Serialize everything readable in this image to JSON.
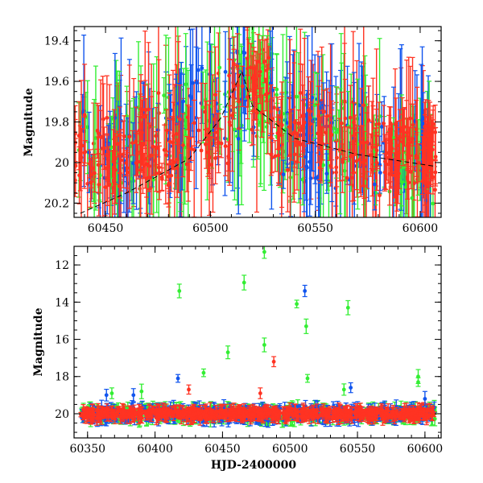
{
  "colors": {
    "green": "#33ee33",
    "blue": "#1155ee",
    "red": "#ff3322",
    "model": "#000000"
  },
  "chart_data": [
    {
      "type": "scatter",
      "panel": "top",
      "title": "",
      "xlabel": "",
      "ylabel": "Magnitude",
      "xlim": [
        60435,
        60610
      ],
      "ylim": [
        20.27,
        19.33
      ],
      "y_inverted": true,
      "x_ticks": [
        "60450",
        "60500",
        "60550",
        "60600"
      ],
      "y_ticks": [
        "19.4",
        "19.6",
        "19.8",
        "20",
        "20.2"
      ],
      "series_colors": [
        "green",
        "blue",
        "red"
      ],
      "error_bars": true,
      "note_points": "dense light curve, ~0.1-0.3 mag error bars, points clustered 19.5-20.2",
      "model_line": {
        "x": [
          60438,
          60460,
          60490,
          60505,
          60515,
          60520,
          60540,
          60570,
          60608
        ],
        "y": [
          20.25,
          20.15,
          19.98,
          19.78,
          19.55,
          19.72,
          19.88,
          19.96,
          20.02
        ]
      }
    },
    {
      "type": "scatter",
      "panel": "bottom",
      "title": "",
      "xlabel": "HJD-2400000",
      "ylabel": "Magnitude",
      "xlim": [
        60340,
        60612
      ],
      "ylim": [
        21.3,
        11.0
      ],
      "y_inverted": true,
      "x_ticks": [
        "60350",
        "60400",
        "60450",
        "60500",
        "60550",
        "60600"
      ],
      "y_ticks": [
        "12",
        "14",
        "16",
        "18",
        "20"
      ],
      "series_colors": [
        "green",
        "blue",
        "red"
      ],
      "error_bars": true,
      "outliers": [
        {
          "x": 60481,
          "y": 11.3,
          "c": "green"
        },
        {
          "x": 60418,
          "y": 13.4,
          "c": "green"
        },
        {
          "x": 60466,
          "y": 12.95,
          "c": "green"
        },
        {
          "x": 60511,
          "y": 13.4,
          "c": "blue"
        },
        {
          "x": 60505,
          "y": 14.1,
          "c": "green"
        },
        {
          "x": 60543,
          "y": 14.3,
          "c": "green"
        },
        {
          "x": 60512,
          "y": 15.3,
          "c": "green"
        },
        {
          "x": 60481,
          "y": 16.3,
          "c": "green"
        },
        {
          "x": 60454,
          "y": 16.7,
          "c": "green"
        },
        {
          "x": 60488,
          "y": 17.2,
          "c": "red"
        },
        {
          "x": 60417,
          "y": 18.1,
          "c": "blue"
        },
        {
          "x": 60436,
          "y": 17.8,
          "c": "green"
        },
        {
          "x": 60513,
          "y": 18.1,
          "c": "green"
        },
        {
          "x": 60595,
          "y": 18.0,
          "c": "green"
        },
        {
          "x": 60595,
          "y": 18.3,
          "c": "green"
        },
        {
          "x": 60364,
          "y": 19.0,
          "c": "blue"
        },
        {
          "x": 60368,
          "y": 18.9,
          "c": "green"
        },
        {
          "x": 60384,
          "y": 19.0,
          "c": "blue"
        },
        {
          "x": 60390,
          "y": 18.8,
          "c": "green"
        },
        {
          "x": 60425,
          "y": 18.7,
          "c": "red"
        },
        {
          "x": 60540,
          "y": 18.7,
          "c": "green"
        },
        {
          "x": 60545,
          "y": 18.6,
          "c": "blue"
        },
        {
          "x": 60600,
          "y": 19.2,
          "c": "blue"
        },
        {
          "x": 60478,
          "y": 18.9,
          "c": "red"
        }
      ],
      "baseline": {
        "x_start": 60345,
        "x_end": 60608,
        "mag_center": 20.0,
        "mag_spread": 0.35
      }
    }
  ]
}
